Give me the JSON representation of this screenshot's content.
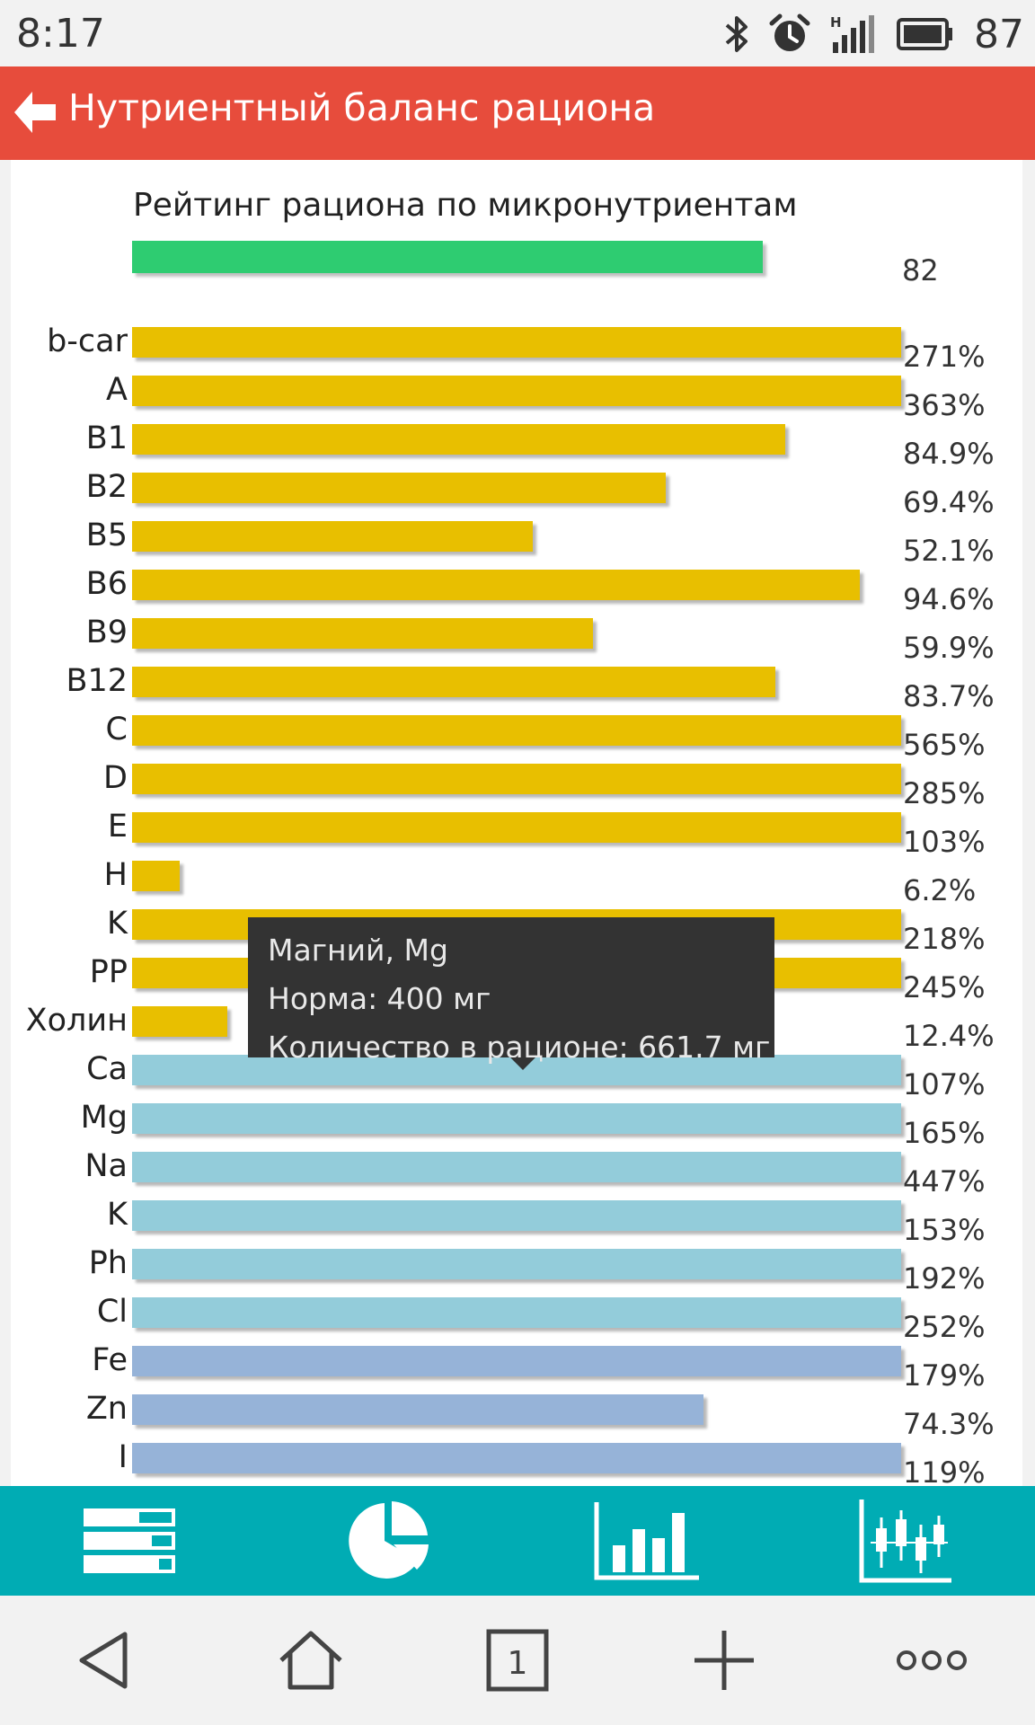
{
  "status_bar": {
    "time": "8:17",
    "network_label": "H",
    "battery": "87",
    "icons": [
      "bluetooth-icon",
      "alarm-icon",
      "signal-icon",
      "battery-icon"
    ]
  },
  "app_bar": {
    "title": "Нутриентный баланс рациона",
    "back_icon": "arrow-left-icon",
    "color": "#e74c3c"
  },
  "rating": {
    "title": "Рейтинг рациона по микронутриентам",
    "value": "82",
    "fraction": 0.82,
    "color": "#2ecc71"
  },
  "colors": {
    "vitamins": "#e8bf00",
    "macro_minerals": "#93ccda",
    "trace_minerals": "#96b3d8"
  },
  "chart_data": {
    "type": "bar",
    "orientation": "horizontal",
    "xlim": [
      0,
      100
    ],
    "categories": [
      "b-car",
      "A",
      "B1",
      "B2",
      "B5",
      "B6",
      "B9",
      "B12",
      "C",
      "D",
      "E",
      "H",
      "K",
      "PP",
      "Холин",
      "Ca",
      "Mg",
      "Na",
      "K",
      "Ph",
      "Cl",
      "Fe",
      "Zn",
      "I"
    ],
    "values": [
      271,
      363,
      84.9,
      69.4,
      52.1,
      94.6,
      59.9,
      83.7,
      565,
      285,
      103,
      6.2,
      218,
      245,
      12.4,
      107,
      165,
      447,
      153,
      192,
      252,
      179,
      74.3,
      119
    ],
    "value_labels": [
      "271%",
      "363%",
      "84.9%",
      "69.4%",
      "52.1%",
      "94.6%",
      "59.9%",
      "83.7%",
      "565%",
      "285%",
      "103%",
      "6.2%",
      "218%",
      "245%",
      "12.4%",
      "107%",
      "165%",
      "447%",
      "153%",
      "192%",
      "252%",
      "179%",
      "74.3%",
      "119%"
    ],
    "groups": [
      "vitamins",
      "vitamins",
      "vitamins",
      "vitamins",
      "vitamins",
      "vitamins",
      "vitamins",
      "vitamins",
      "vitamins",
      "vitamins",
      "vitamins",
      "vitamins",
      "vitamins",
      "vitamins",
      "vitamins",
      "macro_minerals",
      "macro_minerals",
      "macro_minerals",
      "macro_minerals",
      "macro_minerals",
      "macro_minerals",
      "trace_minerals",
      "trace_minerals",
      "trace_minerals"
    ]
  },
  "tooltip": {
    "title": "Магний, Mg",
    "norm": "Норма: 400 мг",
    "amount": "Количество в рационе: 661.7 мг"
  },
  "tab_bar": {
    "color": "#00acb4",
    "tabs": [
      "list-bars-icon",
      "pie-chart-icon",
      "bar-chart-icon",
      "candlestick-chart-icon"
    ]
  },
  "nav_bar": {
    "tab_count": "1",
    "buttons": [
      "back-triangle-icon",
      "home-icon",
      "tabs-icon",
      "plus-icon",
      "more-icon"
    ]
  }
}
